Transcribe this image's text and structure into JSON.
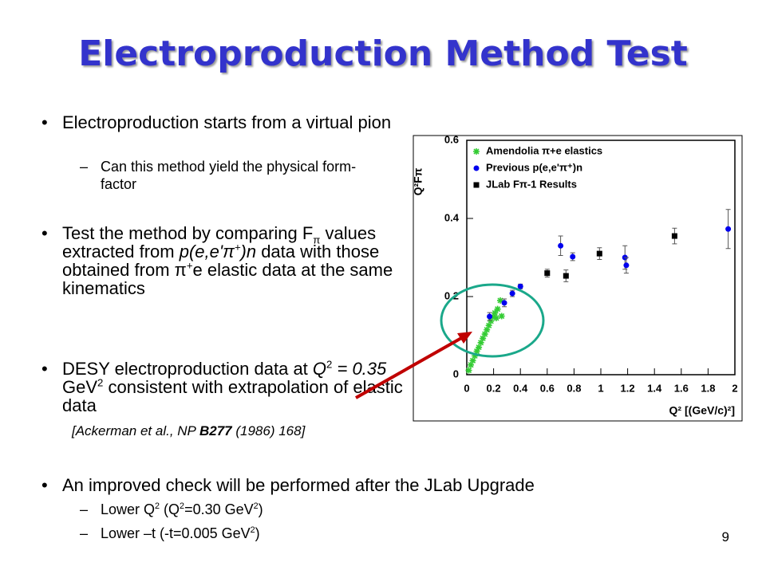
{
  "slide": {
    "title": "Electroproduction Method Test",
    "bullets": [
      {
        "parts": [
          "Electroproduction starts from a virtual pion"
        ]
      },
      {
        "parts": [
          "Can this method yield the physical form-factor"
        ]
      },
      {
        "parts": [
          "Test the method by comparing F",
          "π",
          " values extracted from ",
          "p(e,e'π",
          "+",
          ")n",
          " data with those obtained from ",
          "π",
          "+",
          "e elastic data at the same kinematics"
        ]
      },
      {
        "parts": [
          "DESY electroproduction data at ",
          "Q",
          "2",
          " = 0.35",
          " GeV",
          "2",
          " consistent with extrapolation of elastic data"
        ]
      },
      {
        "parts": [
          "[Ackerman et al., NP ",
          "B277",
          " (1986) 168]"
        ]
      },
      {
        "parts": [
          "An improved check will be performed after the JLab Upgrade"
        ]
      },
      {
        "parts": [
          "Lower Q",
          "2",
          " (Q",
          "2",
          "=0.30 GeV",
          "2",
          ")"
        ]
      },
      {
        "parts": [
          "Lower –t (-t=0.005 GeV",
          "2",
          ")"
        ]
      }
    ],
    "page_number": "9"
  },
  "chart_data": {
    "type": "scatter",
    "x_label": "Q² [(GeV/c)²]",
    "y_label": "Q²Fπ",
    "xlim": [
      0,
      2
    ],
    "ylim": [
      0,
      0.6
    ],
    "xticks": [
      0,
      0.2,
      0.4,
      0.6,
      0.8,
      1,
      1.2,
      1.4,
      1.6,
      1.8,
      2
    ],
    "yticks": [
      0,
      0.2,
      0.4,
      0.6
    ],
    "legend": "upper left",
    "series": [
      {
        "name": "Amendolia π+e elastics",
        "color": "#33cc33",
        "marker": "star",
        "x": [
          0.015,
          0.03,
          0.045,
          0.06,
          0.075,
          0.09,
          0.105,
          0.12,
          0.135,
          0.15,
          0.165,
          0.18,
          0.195,
          0.21,
          0.22,
          0.23,
          0.25,
          0.26
        ],
        "values": [
          0.011,
          0.025,
          0.036,
          0.048,
          0.06,
          0.07,
          0.082,
          0.093,
          0.104,
          0.115,
          0.126,
          0.137,
          0.148,
          0.158,
          0.145,
          0.168,
          0.19,
          0.15
        ]
      },
      {
        "name": "Previous p(e,e'π⁺)n",
        "color": "#0000ee",
        "marker": "circle",
        "x": [
          0.17,
          0.28,
          0.34,
          0.4,
          0.7,
          0.79,
          1.18,
          1.19,
          1.95
        ],
        "values": [
          0.149,
          0.184,
          0.208,
          0.226,
          0.33,
          0.302,
          0.3,
          0.28,
          0.373
        ],
        "errors": [
          0.01,
          0.01,
          0.008,
          0.006,
          0.025,
          0.01,
          0.03,
          0.02,
          0.05
        ]
      },
      {
        "name": "JLab Fπ-1 Results",
        "color": "#000000",
        "marker": "square",
        "x": [
          0.6,
          0.74,
          0.99,
          1.55
        ],
        "values": [
          0.26,
          0.253,
          0.31,
          0.355
        ],
        "errors": [
          0.01,
          0.015,
          0.015,
          0.02
        ]
      }
    ]
  }
}
